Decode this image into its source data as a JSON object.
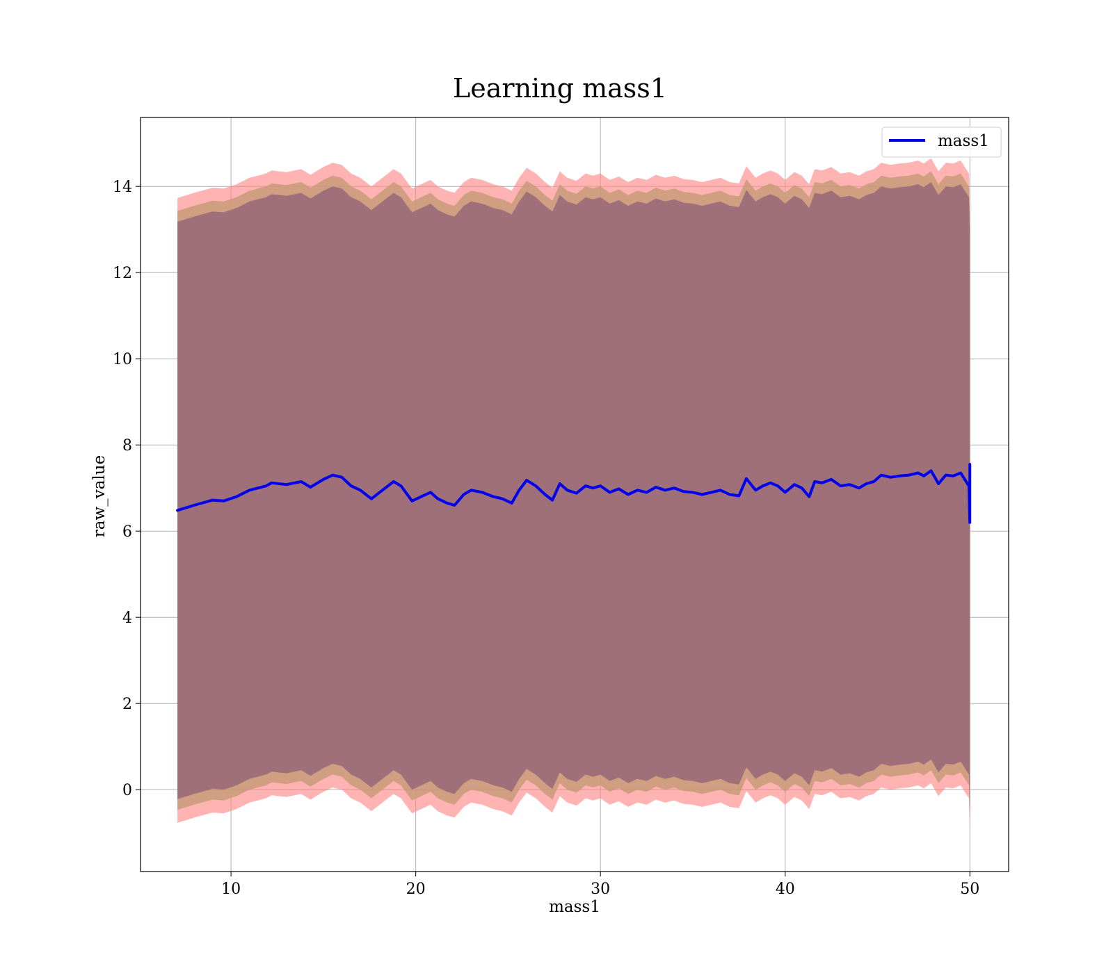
{
  "chart_data": {
    "type": "line",
    "title": "Learning mass1",
    "xlabel": "mass1",
    "ylabel": "raw_value",
    "xlim": [
      5.1,
      52.1
    ],
    "ylim": [
      -1.9,
      15.6
    ],
    "xticks": [
      10,
      20,
      30,
      40,
      50
    ],
    "yticks": [
      0,
      2,
      4,
      6,
      8,
      10,
      12,
      14
    ],
    "grid": true,
    "legend": {
      "placement": "top-right",
      "entries": [
        "mass1"
      ]
    },
    "colors": {
      "line": "#0000ee",
      "outer_band": "#ff8080",
      "middle_band": "#c89a78",
      "inner_band": "#a0707a",
      "grid": "#b0b0b0"
    },
    "series": [
      {
        "name": "mass1",
        "x": [
          7.1,
          8.0,
          9.0,
          9.6,
          10.3,
          11.0,
          11.9,
          12.2,
          13.0,
          13.8,
          14.3,
          15.0,
          15.5,
          16.0,
          16.5,
          17.0,
          17.6,
          18.2,
          18.8,
          19.2,
          19.8,
          20.3,
          20.8,
          21.2,
          21.7,
          22.1,
          22.6,
          23.0,
          23.6,
          24.2,
          24.7,
          25.2,
          25.6,
          26.0,
          26.5,
          27.0,
          27.4,
          27.8,
          28.2,
          28.7,
          29.2,
          29.6,
          30.0,
          30.5,
          31.0,
          31.5,
          32.0,
          32.5,
          33.0,
          33.5,
          34.0,
          34.5,
          35.0,
          35.5,
          36.0,
          36.5,
          37.0,
          37.5,
          37.9,
          38.4,
          38.8,
          39.2,
          39.6,
          40.0,
          40.5,
          40.9,
          41.3,
          41.6,
          42.0,
          42.5,
          43.0,
          43.5,
          44.0,
          44.4,
          44.8,
          45.2,
          45.7,
          46.2,
          46.7,
          47.2,
          47.5,
          47.9,
          48.3,
          48.7,
          49.1,
          49.5,
          49.8,
          49.95,
          50.0,
          50.0
        ],
        "y": [
          6.48,
          6.6,
          6.72,
          6.7,
          6.8,
          6.95,
          7.05,
          7.12,
          7.08,
          7.15,
          7.02,
          7.2,
          7.3,
          7.25,
          7.05,
          6.95,
          6.75,
          6.95,
          7.15,
          7.05,
          6.7,
          6.8,
          6.9,
          6.75,
          6.65,
          6.6,
          6.85,
          6.95,
          6.9,
          6.8,
          6.75,
          6.65,
          6.95,
          7.18,
          7.05,
          6.85,
          6.72,
          7.1,
          6.95,
          6.88,
          7.05,
          7.0,
          7.05,
          6.9,
          6.98,
          6.85,
          6.95,
          6.9,
          7.02,
          6.95,
          7.0,
          6.92,
          6.9,
          6.85,
          6.9,
          6.95,
          6.85,
          6.82,
          7.22,
          6.95,
          7.05,
          7.12,
          7.05,
          6.9,
          7.08,
          7.0,
          6.8,
          7.15,
          7.12,
          7.2,
          7.05,
          7.08,
          7.0,
          7.1,
          7.15,
          7.3,
          7.25,
          7.28,
          7.3,
          7.35,
          7.28,
          7.4,
          7.1,
          7.3,
          7.28,
          7.35,
          7.15,
          7.05,
          6.2,
          7.55
        ]
      }
    ],
    "bands": {
      "outer": {
        "upper_offset": 7.25,
        "lower_offset": 7.25
      },
      "middle": {
        "upper_offset": 6.95,
        "lower_offset": 6.95
      },
      "inner": {
        "upper_offset": 6.7,
        "lower_offset": 6.7
      }
    }
  }
}
